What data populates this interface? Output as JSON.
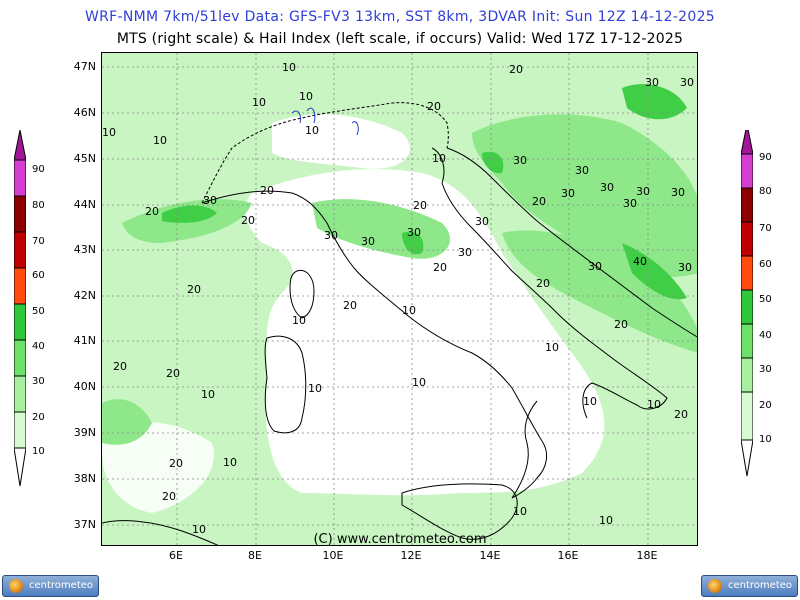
{
  "header": {
    "line1": "WRF-NMM 7km/51lev  Data: GFS-FV3 13km, SST 8km, 3DVAR   Init: Sun 12Z 14-12-2025",
    "line2": "MTS (right scale) & Hail Index (left scale, if occurs) Valid: Wed 17Z 17-12-2025"
  },
  "map": {
    "lat_labels": [
      "47N",
      "46N",
      "45N",
      "44N",
      "43N",
      "42N",
      "41N",
      "40N",
      "39N",
      "38N",
      "37N"
    ],
    "lon_labels": [
      "6E",
      "8E",
      "10E",
      "12E",
      "14E",
      "16E",
      "18E"
    ],
    "copyright": "(C) www.centrometeo.com",
    "contour_labels": [
      "10",
      "20",
      "30",
      "40"
    ]
  },
  "left_scale": {
    "labels": [
      "90",
      "80",
      "70",
      "60",
      "50",
      "40",
      "30",
      "20",
      "10"
    ],
    "colors": [
      "#a0179a",
      "#d43fd0",
      "#8b0000",
      "#c00000",
      "#ff4a10",
      "#2ec83a",
      "#6ee06a",
      "#a8f0a0",
      "#d8fad2"
    ]
  },
  "right_scale": {
    "labels": [
      "90",
      "80",
      "70",
      "60",
      "50",
      "40",
      "30",
      "20",
      "10"
    ],
    "colors": [
      "#a0179a",
      "#d43fd0",
      "#8b0000",
      "#c00000",
      "#ff4a10",
      "#2ec83a",
      "#6ee06a",
      "#a8f0a0",
      "#d8fad2"
    ]
  },
  "logos": {
    "left": "centrometeo",
    "right": "centrometeo"
  },
  "colors": {
    "title_blue": "#2f3fd6",
    "field_light": "#c8f5c2",
    "field_mid": "#8ee88a",
    "field_dark": "#3fce45"
  }
}
